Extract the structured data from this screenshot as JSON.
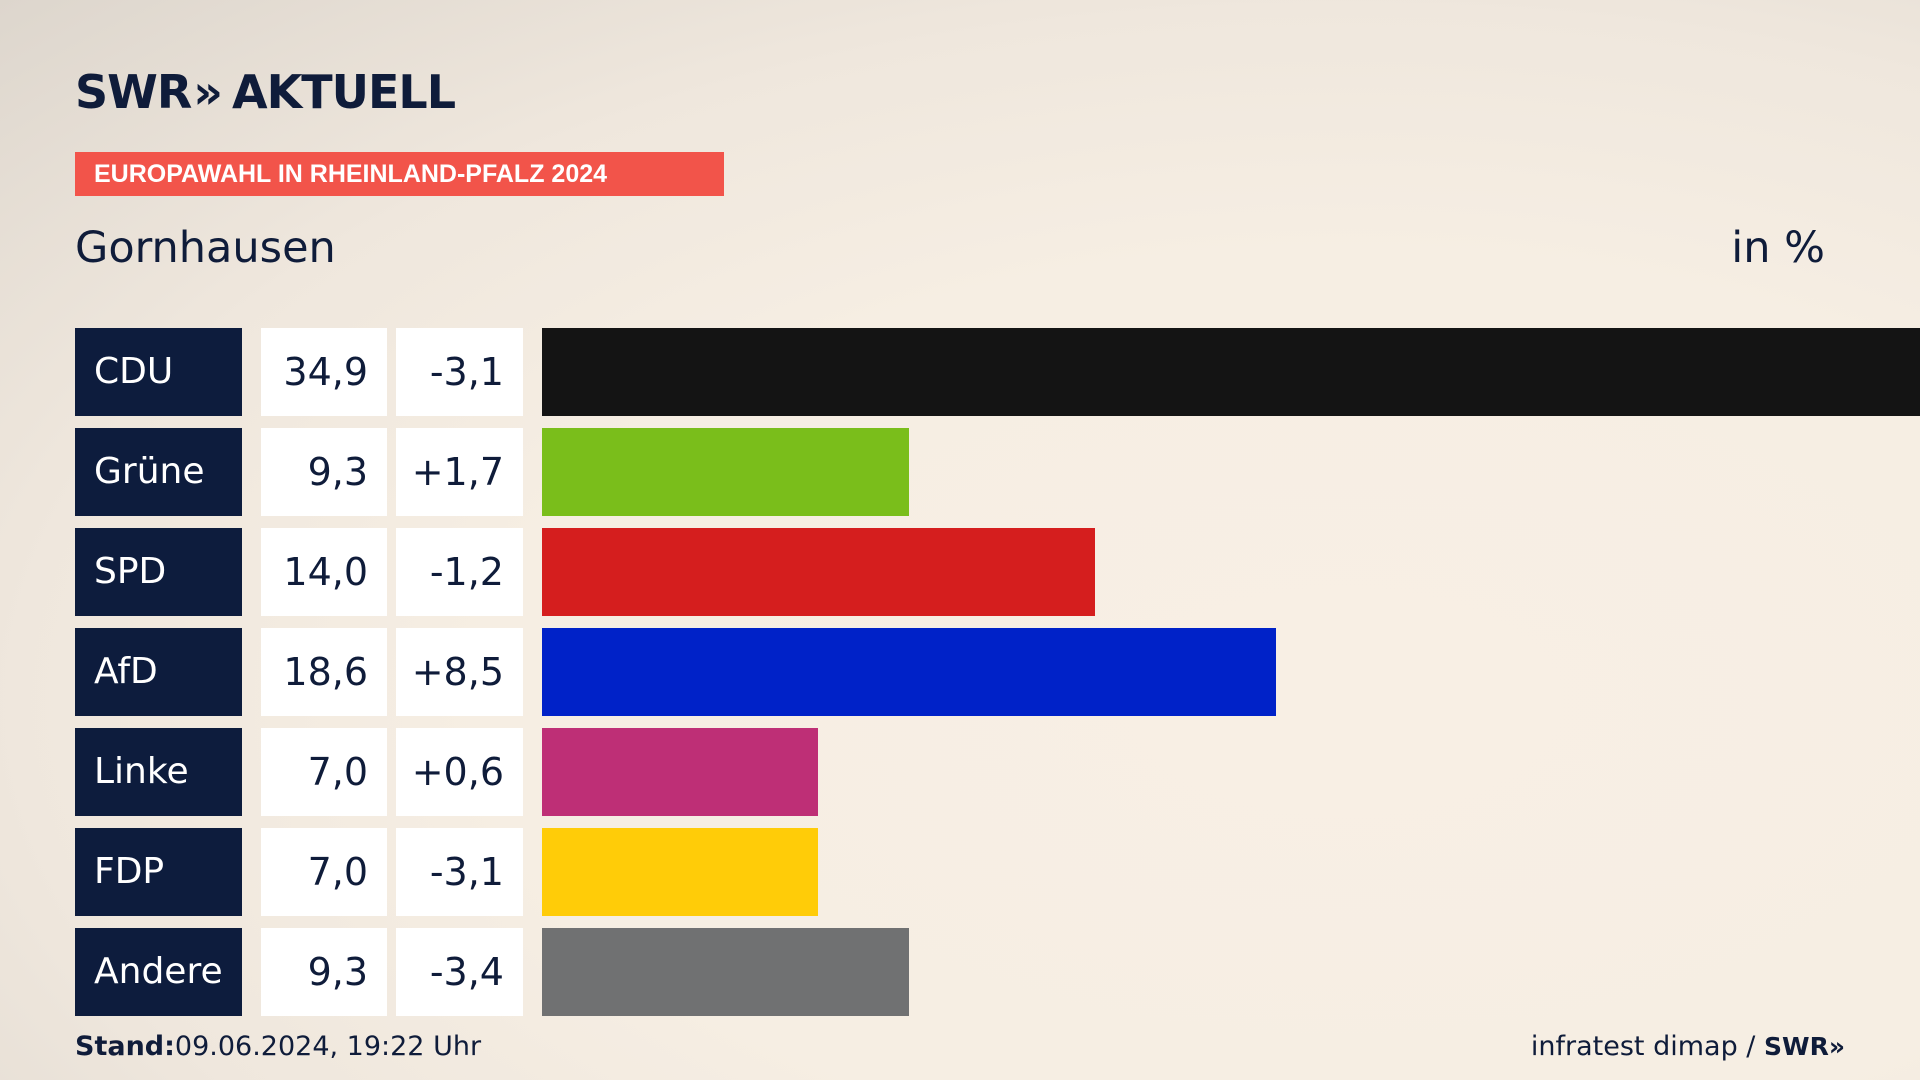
{
  "header": {
    "logo_brand": "SWR",
    "logo_arrows": "»",
    "logo_section": "AKTUELL",
    "banner": "EUROPAWAHL IN RHEINLAND-PFALZ 2024",
    "place": "Gornhausen",
    "unit": "in %"
  },
  "chart_data": {
    "type": "bar",
    "orientation": "horizontal",
    "categories": [
      "CDU",
      "Grüne",
      "SPD",
      "AfD",
      "Linke",
      "FDP",
      "Andere"
    ],
    "series": [
      {
        "values": [
          34.9,
          9.3,
          14.0,
          18.6,
          7.0,
          7.0,
          9.3
        ]
      }
    ],
    "value_labels": [
      "34,9",
      "9,3",
      "14,0",
      "18,6",
      "7,0",
      "7,0",
      "9,3"
    ],
    "change_labels": [
      "-3,1",
      "+1,7",
      "-1,2",
      "+8,5",
      "+0,6",
      "-3,1",
      "-3,4"
    ],
    "changes": [
      -3.1,
      1.7,
      -1.2,
      8.5,
      0.6,
      -3.1,
      -3.4
    ],
    "colors": [
      "#141414",
      "#7abe1b",
      "#d51e1e",
      "#0022c8",
      "#be2f76",
      "#ffcc08",
      "#707172"
    ],
    "xlim": [
      0,
      34.9
    ],
    "grid": false
  },
  "footer": {
    "stand_label": "Stand:",
    "stand_value": "09.06.2024, 19:22 Uhr",
    "source": "infratest dimap /",
    "source_brand": "SWR",
    "source_arrows": "»"
  }
}
